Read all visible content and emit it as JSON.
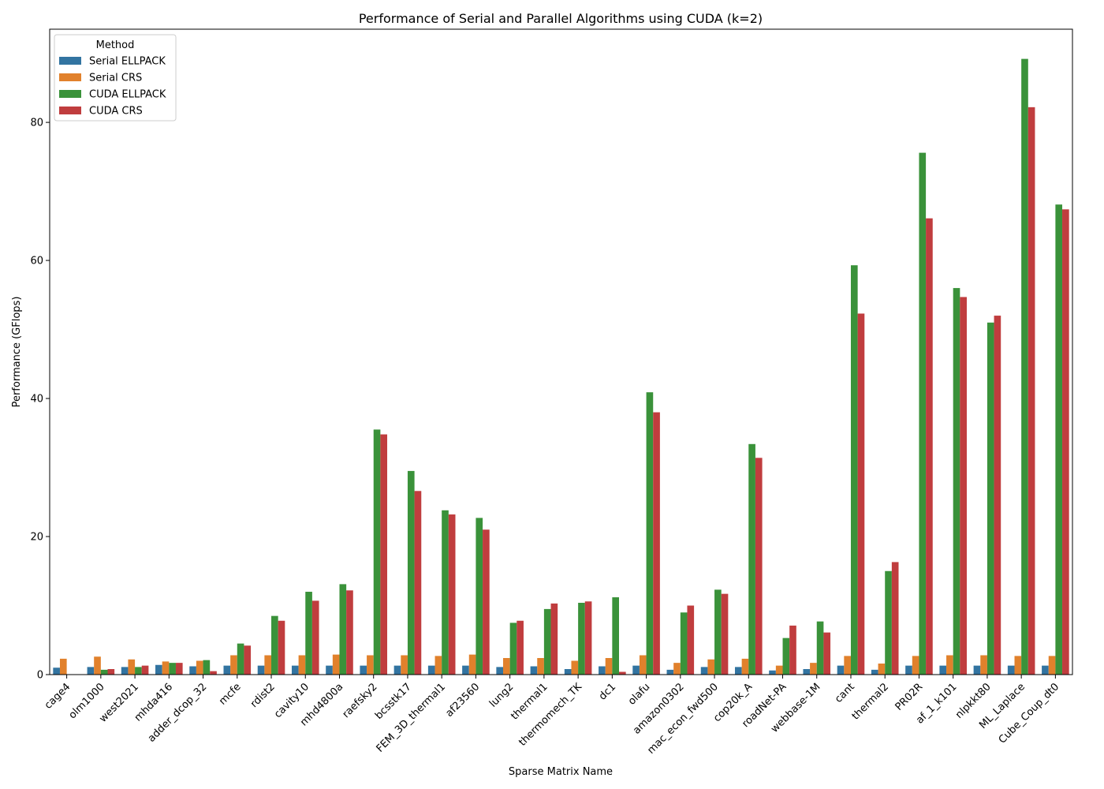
{
  "chart_data": {
    "type": "bar",
    "title": "Performance of Serial and Parallel Algorithms using CUDA (k=2)",
    "xlabel": "Sparse Matrix Name",
    "ylabel": "Performance (GFlops)",
    "ylim": [
      0,
      93.5
    ],
    "yticks": [
      0,
      20,
      40,
      60,
      80
    ],
    "grid": false,
    "legend": {
      "title": "Method",
      "placement": "top-left"
    },
    "categories": [
      "cage4",
      "olm1000",
      "west2021",
      "mhda416",
      "adder_dcop_32",
      "mcfe",
      "rdist2",
      "cavity10",
      "mhd4800a",
      "raefsky2",
      "bcsstk17",
      "FEM_3D_thermal1",
      "af23560",
      "lung2",
      "thermal1",
      "thermomech_TK",
      "dc1",
      "olafu",
      "amazon0302",
      "mac_econ_fwd500",
      "cop20k_A",
      "roadNet-PA",
      "webbase-1M",
      "cant",
      "thermal2",
      "PR02R",
      "af_1_k101",
      "nlpkkt80",
      "ML_Laplace",
      "Cube_Coup_dt0"
    ],
    "series": [
      {
        "name": "Serial ELLPACK",
        "color": "#3274a1",
        "values": [
          1.0,
          1.1,
          1.1,
          1.4,
          1.2,
          1.3,
          1.3,
          1.3,
          1.3,
          1.3,
          1.3,
          1.3,
          1.3,
          1.1,
          1.2,
          0.8,
          1.2,
          1.3,
          0.7,
          1.1,
          1.1,
          0.6,
          0.8,
          1.3,
          0.7,
          1.3,
          1.3,
          1.3,
          1.3,
          1.3
        ]
      },
      {
        "name": "Serial CRS",
        "color": "#e1812c",
        "values": [
          2.3,
          2.6,
          2.2,
          1.9,
          2.0,
          2.8,
          2.8,
          2.8,
          2.9,
          2.8,
          2.8,
          2.7,
          2.9,
          2.4,
          2.4,
          2.0,
          2.4,
          2.8,
          1.7,
          2.2,
          2.3,
          1.3,
          1.7,
          2.7,
          1.6,
          2.7,
          2.8,
          2.8,
          2.7,
          2.7
        ]
      },
      {
        "name": "CUDA ELLPACK",
        "color": "#3a923a",
        "values": [
          0.0,
          0.7,
          1.1,
          1.7,
          2.1,
          4.5,
          8.5,
          12.0,
          13.1,
          35.5,
          29.5,
          23.8,
          22.7,
          7.5,
          9.5,
          10.4,
          11.2,
          40.9,
          9.0,
          12.3,
          33.4,
          5.3,
          7.7,
          59.3,
          15.0,
          75.6,
          56.0,
          51.0,
          89.2,
          68.1
        ]
      },
      {
        "name": "CUDA CRS",
        "color": "#c03d3e",
        "values": [
          0.0,
          0.8,
          1.3,
          1.7,
          0.5,
          4.2,
          7.8,
          10.7,
          12.2,
          34.8,
          26.6,
          23.2,
          21.0,
          7.8,
          10.3,
          10.6,
          0.4,
          38.0,
          10.0,
          11.7,
          31.4,
          7.1,
          6.1,
          52.3,
          16.3,
          66.1,
          54.7,
          52.0,
          82.2,
          67.4
        ]
      }
    ]
  }
}
